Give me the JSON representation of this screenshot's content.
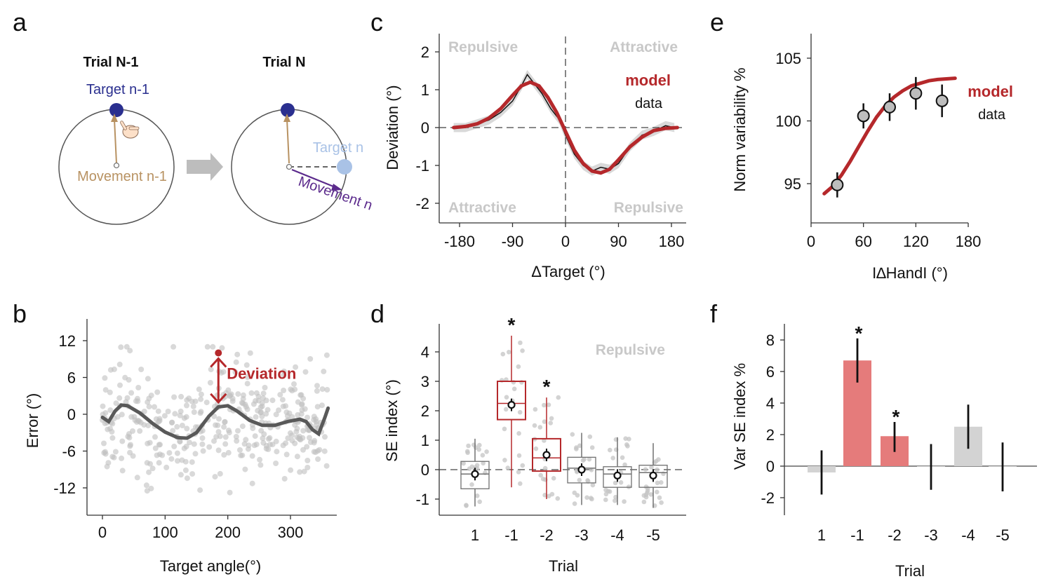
{
  "panel_letters": {
    "a": "a",
    "b": "b",
    "c": "c",
    "d": "d",
    "e": "e",
    "f": "f"
  },
  "diagram_a": {
    "trial_prev": "Trial N-1",
    "trial_curr": "Trial N",
    "target_prev": "Target n-1",
    "movement_prev": "Movement n-1",
    "target_curr": "Target n",
    "movement_curr": "Movement n",
    "colors": {
      "target_prev": "#2a2f8f",
      "target_curr": "#a9c2e6",
      "movement_prev": "#b89262",
      "movement_curr": "#5b2a8c",
      "arrow": "#bdbdbd"
    }
  },
  "chart_data": [
    {
      "id": "b",
      "type": "scatter",
      "title": "",
      "xlabel": "Target angle(°)",
      "ylabel": "Error (°)",
      "xlim": [
        -10,
        365
      ],
      "ylim": [
        -15,
        15
      ],
      "xticks": [
        0,
        100,
        200,
        300
      ],
      "yticks": [
        12,
        6,
        0,
        -6,
        -12
      ],
      "curve": {
        "name": "fit",
        "x": [
          0,
          10,
          20,
          30,
          40,
          60,
          80,
          100,
          120,
          135,
          150,
          170,
          185,
          200,
          215,
          235,
          255,
          275,
          295,
          315,
          325,
          335,
          345,
          355,
          360
        ],
        "y": [
          -0.5,
          -1.2,
          0.5,
          1.5,
          1.4,
          0.2,
          -1.5,
          -2.9,
          -3.8,
          -3.9,
          -3.0,
          -0.3,
          1.2,
          1.4,
          0.5,
          -1.0,
          -1.8,
          -1.8,
          -1.2,
          -0.8,
          -1.2,
          -2.5,
          -3.2,
          -0.5,
          1.0
        ]
      },
      "scatter_summary": {
        "n": 400,
        "spread_sd": 4.5
      },
      "annotation": {
        "label": "Deviation",
        "x": 185,
        "y_from": 1.5,
        "y_to": 10
      },
      "colors": {
        "curve": "#595959",
        "points": "#bfbfbf",
        "annotation": "#b5282b"
      }
    },
    {
      "id": "c",
      "type": "line",
      "xlabel": "ΔTarget (°)",
      "ylabel": "Deviation (°)",
      "xlim": [
        -200,
        200
      ],
      "ylim": [
        -2.3,
        2.3
      ],
      "xticks": [
        -180,
        -90,
        0,
        90,
        180
      ],
      "yticks": [
        2,
        1,
        0,
        -1,
        -2
      ],
      "series": [
        {
          "name": "model",
          "x": [
            -190,
            -170,
            -150,
            -130,
            -110,
            -90,
            -75,
            -60,
            -45,
            -30,
            -15,
            0,
            15,
            30,
            45,
            60,
            75,
            90,
            110,
            130,
            150,
            170,
            190
          ],
          "y": [
            0.0,
            0.03,
            0.1,
            0.25,
            0.5,
            0.85,
            1.1,
            1.2,
            1.1,
            0.8,
            0.4,
            -0.1,
            -0.6,
            -0.95,
            -1.15,
            -1.2,
            -1.1,
            -0.85,
            -0.5,
            -0.25,
            -0.08,
            -0.02,
            0.0
          ]
        },
        {
          "name": "data",
          "x": [
            -190,
            -170,
            -150,
            -130,
            -110,
            -90,
            -75,
            -65,
            -55,
            -40,
            -25,
            -10,
            0,
            15,
            30,
            45,
            60,
            75,
            90,
            110,
            130,
            150,
            170,
            185
          ],
          "y": [
            0.0,
            0.0,
            0.1,
            0.2,
            0.4,
            0.7,
            1.1,
            1.4,
            1.2,
            0.9,
            0.5,
            0.2,
            -0.2,
            -0.7,
            -1.0,
            -1.15,
            -1.05,
            -1.1,
            -0.95,
            -0.5,
            -0.2,
            -0.1,
            0.05,
            0.0
          ]
        }
      ],
      "region_labels": {
        "top_left": "Repulsive",
        "top_right": "Attractive",
        "bottom_left": "Attractive",
        "bottom_right": "Repulsive"
      },
      "legend": {
        "model": "model",
        "data": "data"
      },
      "colors": {
        "model": "#b5282b",
        "data": "#111111",
        "band": "#d9d9d9"
      }
    },
    {
      "id": "d",
      "type": "box",
      "xlabel": "Trial",
      "ylabel": "SE index (°)",
      "ylim": [
        -1.5,
        4.9
      ],
      "yticks": [
        4,
        3,
        2,
        1,
        0,
        -1
      ],
      "categories": [
        "1",
        "-1",
        "-2",
        "-3",
        "-4",
        "-5"
      ],
      "boxes": [
        {
          "q1": -0.65,
          "median": -0.15,
          "q3": 0.28,
          "min": -1.25,
          "max": 1.05,
          "mean": -0.15,
          "sig": false
        },
        {
          "q1": 1.7,
          "median": 2.25,
          "q3": 3.0,
          "min": -0.6,
          "max": 4.55,
          "mean": 2.2,
          "sig": true
        },
        {
          "q1": -0.05,
          "median": 0.4,
          "q3": 1.05,
          "min": -1.0,
          "max": 2.45,
          "mean": 0.5,
          "sig": true
        },
        {
          "q1": -0.45,
          "median": 0.05,
          "q3": 0.42,
          "min": -1.2,
          "max": 1.25,
          "mean": 0.0,
          "sig": false
        },
        {
          "q1": -0.6,
          "median": -0.15,
          "q3": 0.1,
          "min": -1.2,
          "max": 1.1,
          "mean": -0.2,
          "sig": false
        },
        {
          "q1": -0.6,
          "median": -0.1,
          "q3": 0.15,
          "min": -1.3,
          "max": 0.9,
          "mean": -0.2,
          "sig": false
        }
      ],
      "region_label": "Repulsive",
      "star": "*",
      "colors": {
        "sig": "#b5282b",
        "nonsig": "#707070",
        "points": "#c4c4c4"
      }
    },
    {
      "id": "e",
      "type": "line",
      "xlabel": "I∆HandI (°)",
      "ylabel": "Norm variability %",
      "xlim": [
        0,
        180
      ],
      "ylim": [
        92,
        107
      ],
      "xticks": [
        0,
        60,
        120,
        180
      ],
      "yticks": [
        105,
        100,
        95
      ],
      "series": [
        {
          "name": "model",
          "x": [
            15,
            25,
            35,
            45,
            55,
            65,
            75,
            85,
            95,
            105,
            115,
            125,
            135,
            145,
            155,
            165
          ],
          "y": [
            94.2,
            94.8,
            95.7,
            96.8,
            98.0,
            99.2,
            100.3,
            101.2,
            101.9,
            102.4,
            102.8,
            103.0,
            103.2,
            103.3,
            103.35,
            103.4
          ]
        },
        {
          "name": "data",
          "x": [
            30,
            60,
            90,
            120,
            150
          ],
          "y": [
            94.9,
            100.4,
            101.1,
            102.2,
            101.6
          ],
          "err": [
            1.0,
            1.0,
            1.1,
            1.3,
            1.3
          ]
        }
      ],
      "legend": {
        "model": "model",
        "data": "data"
      },
      "colors": {
        "model": "#b5282b",
        "points": "#bdbdbd"
      }
    },
    {
      "id": "f",
      "type": "bar",
      "xlabel": "Trial",
      "ylabel": "Var SE index %",
      "ylim": [
        -3,
        9
      ],
      "yticks": [
        8,
        6,
        4,
        2,
        0,
        -2
      ],
      "categories": [
        "1",
        "-1",
        "-2",
        "-3",
        "-4",
        "-5"
      ],
      "values": [
        -0.4,
        6.7,
        1.9,
        0.0,
        2.5,
        0.0
      ],
      "err_low": [
        -1.8,
        5.3,
        0.9,
        -1.5,
        1.1,
        -1.6
      ],
      "err_high": [
        1.0,
        8.1,
        2.8,
        1.4,
        3.9,
        1.5
      ],
      "sig": [
        false,
        true,
        true,
        false,
        false,
        false
      ],
      "star": "*",
      "colors": {
        "sig": "#e57b7b",
        "nonsig": "#d3d3d3"
      }
    }
  ]
}
